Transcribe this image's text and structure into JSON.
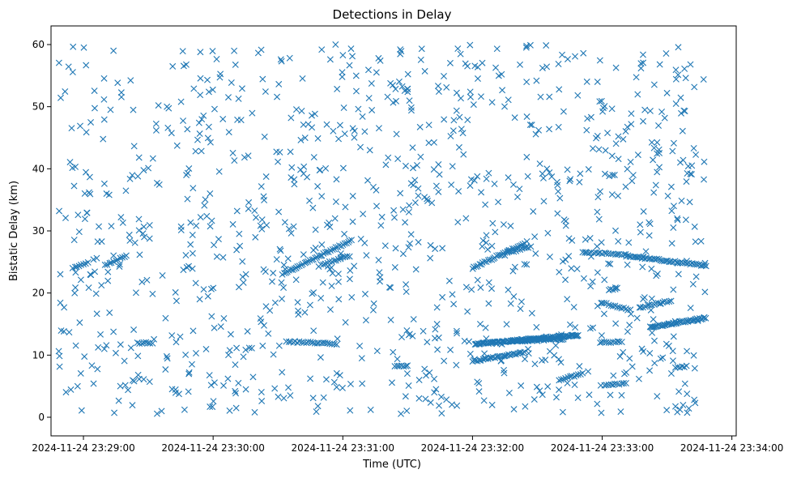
{
  "chart_data": {
    "type": "scatter",
    "title": "Detections in Delay",
    "xlabel": "Time (UTC)",
    "ylabel": "Bistatic Delay (km)",
    "marker": "x",
    "marker_color": "#1f77b4",
    "x_unit": "seconds after 2024-11-24 23:29:00",
    "xlim": [
      -15,
      302
    ],
    "ylim": [
      -3,
      63
    ],
    "grid": false,
    "x_ticks": [
      {
        "value": 0,
        "label": "2024-11-24 23:29:00"
      },
      {
        "value": 60,
        "label": "2024-11-24 23:30:00"
      },
      {
        "value": 120,
        "label": "2024-11-24 23:31:00"
      },
      {
        "value": 180,
        "label": "2024-11-24 23:32:00"
      },
      {
        "value": 240,
        "label": "2024-11-24 23:33:00"
      },
      {
        "value": 300,
        "label": "2024-11-24 23:34:00"
      }
    ],
    "y_ticks": [
      {
        "value": 0,
        "label": "0"
      },
      {
        "value": 10,
        "label": "10"
      },
      {
        "value": 20,
        "label": "20"
      },
      {
        "value": 30,
        "label": "30"
      },
      {
        "value": 40,
        "label": "40"
      },
      {
        "value": 50,
        "label": "50"
      },
      {
        "value": 60,
        "label": "60"
      }
    ],
    "time_range_s": [
      -12,
      288
    ],
    "tracks": [
      {
        "x0": 94,
        "y0": 12.2,
        "x1": 117,
        "y1": 11.8,
        "step": 1.0
      },
      {
        "x0": 92,
        "y0": 23.0,
        "x1": 124,
        "y1": 28.5,
        "step": 0.8
      },
      {
        "x0": 110,
        "y0": 24.5,
        "x1": 123,
        "y1": 26.0,
        "step": 1.0
      },
      {
        "x0": 10,
        "y0": 24.5,
        "x1": 20,
        "y1": 26.0,
        "step": 1.0
      },
      {
        "x0": -5,
        "y0": 24.0,
        "x1": 2,
        "y1": 25.0,
        "step": 1.0
      },
      {
        "x0": 180,
        "y0": 9.0,
        "x1": 204,
        "y1": 10.5,
        "step": 0.8
      },
      {
        "x0": 181,
        "y0": 11.8,
        "x1": 229,
        "y1": 13.2,
        "step": 0.5
      },
      {
        "x0": 197,
        "y0": 12.2,
        "x1": 222,
        "y1": 12.6,
        "step": 0.8
      },
      {
        "x0": 180,
        "y0": 24.0,
        "x1": 204,
        "y1": 28.0,
        "step": 0.8
      },
      {
        "x0": 196,
        "y0": 26.5,
        "x1": 207,
        "y1": 27.5,
        "step": 1.0
      },
      {
        "x0": 231,
        "y0": 26.5,
        "x1": 251,
        "y1": 26.2,
        "step": 1.0
      },
      {
        "x0": 251,
        "y0": 26.0,
        "x1": 288,
        "y1": 24.4,
        "step": 0.8
      },
      {
        "x0": 240,
        "y0": 18.5,
        "x1": 253,
        "y1": 17.2,
        "step": 1.0
      },
      {
        "x0": 258,
        "y0": 17.7,
        "x1": 272,
        "y1": 18.8,
        "step": 1.0
      },
      {
        "x0": 262,
        "y0": 14.5,
        "x1": 288,
        "y1": 16.0,
        "step": 0.6
      },
      {
        "x0": 241,
        "y0": 5.2,
        "x1": 251,
        "y1": 5.5,
        "step": 1.0
      },
      {
        "x0": 239,
        "y0": 12.0,
        "x1": 249,
        "y1": 12.2,
        "step": 1.0
      },
      {
        "x0": 243,
        "y0": 20.5,
        "x1": 247,
        "y1": 20.8,
        "step": 1.0
      },
      {
        "x0": 274,
        "y0": 8.0,
        "x1": 279,
        "y1": 8.2,
        "step": 1.0
      },
      {
        "x0": 220,
        "y0": 6.0,
        "x1": 231,
        "y1": 7.0,
        "step": 1.0
      },
      {
        "x0": 25,
        "y0": 11.9,
        "x1": 32,
        "y1": 12.0,
        "step": 1.0
      },
      {
        "x0": 144,
        "y0": 8.2,
        "x1": 150,
        "y1": 8.2,
        "step": 1.0
      }
    ],
    "noise_count": 1050,
    "noise_seed": 13
  }
}
